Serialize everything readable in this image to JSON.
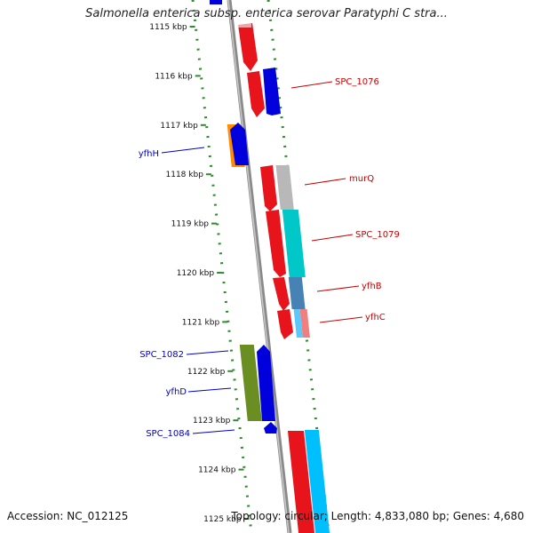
{
  "title": "Salmonella enterica subsp. enterica serovar Paratyphi C stra...",
  "footer": {
    "accession": "Accession: NC_012125",
    "summary": "Topology: circular; Length: 4,833,080 bp; Genes: 4,680"
  },
  "colors": {
    "forward_label": "#cc0000",
    "reverse_label": "#0000cc",
    "backbone": "#808080",
    "gc_dots": "#2e8b2e"
  },
  "ticks": [
    "1115 kbp",
    "1116 kbp",
    "1117 kbp",
    "1118 kbp",
    "1119 kbp",
    "1120 kbp",
    "1121 kbp",
    "1122 kbp",
    "1123 kbp",
    "1124 kbp",
    "1125 kbp"
  ],
  "genes": [
    {
      "label": "SPC_1076",
      "strand": "forward"
    },
    {
      "label": "yfhH",
      "strand": "reverse"
    },
    {
      "label": "murQ",
      "strand": "forward"
    },
    {
      "label": "SPC_1079",
      "strand": "forward"
    },
    {
      "label": "yfhB",
      "strand": "forward"
    },
    {
      "label": "yfhC",
      "strand": "forward"
    },
    {
      "label": "SPC_1082",
      "strand": "reverse"
    },
    {
      "label": "yfhD",
      "strand": "reverse"
    },
    {
      "label": "SPC_1084",
      "strand": "reverse"
    }
  ]
}
